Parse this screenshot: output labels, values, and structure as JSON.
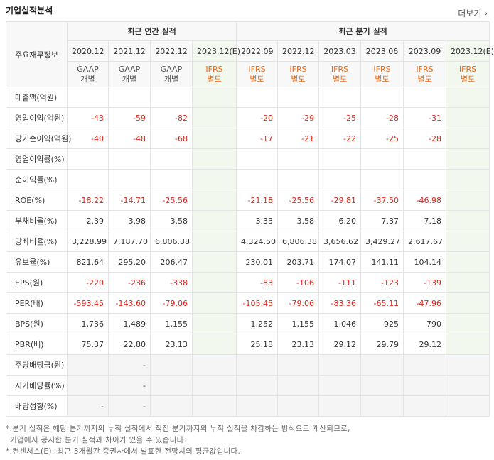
{
  "title": "기업실적분석",
  "more": "더보기",
  "table": {
    "corner": "주요재무정보",
    "groups": [
      {
        "label": "최근 연간 실적",
        "span": 4
      },
      {
        "label": "최근 분기 실적",
        "span": 6
      }
    ],
    "periods": [
      "2020.12",
      "2021.12",
      "2022.12",
      "2023.12(E)",
      "2022.09",
      "2022.12",
      "2023.03",
      "2023.06",
      "2023.09",
      "2023.12(E)"
    ],
    "standards": [
      {
        "type": "GAAP",
        "basis": "개별",
        "color": "#555555"
      },
      {
        "type": "GAAP",
        "basis": "개별",
        "color": "#555555"
      },
      {
        "type": "GAAP",
        "basis": "개별",
        "color": "#555555"
      },
      {
        "type": "IFRS",
        "basis": "별도",
        "color": "#e8691c"
      },
      {
        "type": "IFRS",
        "basis": "별도",
        "color": "#e8691c"
      },
      {
        "type": "IFRS",
        "basis": "별도",
        "color": "#e8691c"
      },
      {
        "type": "IFRS",
        "basis": "별도",
        "color": "#e8691c"
      },
      {
        "type": "IFRS",
        "basis": "별도",
        "color": "#e8691c"
      },
      {
        "type": "IFRS",
        "basis": "별도",
        "color": "#e8691c"
      },
      {
        "type": "IFRS",
        "basis": "별도",
        "color": "#e8691c"
      }
    ],
    "sections": [
      {
        "rows": [
          {
            "label": "매출액(억원)",
            "values": [
              null,
              null,
              null,
              null,
              null,
              null,
              null,
              null,
              null,
              null
            ]
          },
          {
            "label": "영업이익(억원)",
            "values": [
              "-43",
              "-59",
              "-82",
              null,
              "-20",
              "-29",
              "-25",
              "-28",
              "-31",
              null
            ]
          },
          {
            "label": "당기순이익(억원)",
            "values": [
              "-40",
              "-48",
              "-68",
              null,
              "-17",
              "-21",
              "-22",
              "-25",
              "-28",
              null
            ]
          },
          {
            "label": "영업이익률(%)",
            "values": [
              null,
              null,
              null,
              null,
              null,
              null,
              null,
              null,
              null,
              null
            ]
          },
          {
            "label": "순이익률(%)",
            "values": [
              null,
              null,
              null,
              null,
              null,
              null,
              null,
              null,
              null,
              null
            ]
          },
          {
            "label": "ROE(%)",
            "values": [
              "-18.22",
              "-14.71",
              "-25.56",
              null,
              "-21.18",
              "-25.56",
              "-29.81",
              "-37.50",
              "-46.98",
              null
            ]
          }
        ]
      },
      {
        "rows": [
          {
            "label": "부채비율(%)",
            "values": [
              "2.39",
              "3.98",
              "3.58",
              null,
              "3.33",
              "3.58",
              "6.20",
              "7.37",
              "7.18",
              null
            ]
          },
          {
            "label": "당좌비율(%)",
            "values": [
              "3,228.99",
              "7,187.70",
              "6,806.38",
              null,
              "4,324.50",
              "6,806.38",
              "3,656.62",
              "3,429.27",
              "2,617.67",
              null
            ]
          },
          {
            "label": "유보율(%)",
            "values": [
              "821.64",
              "295.20",
              "206.47",
              null,
              "230.01",
              "203.71",
              "174.07",
              "141.11",
              "104.14",
              null
            ]
          }
        ]
      },
      {
        "rows": [
          {
            "label": "EPS(원)",
            "values": [
              "-220",
              "-236",
              "-338",
              null,
              "-83",
              "-106",
              "-111",
              "-123",
              "-139",
              null
            ]
          },
          {
            "label": "PER(배)",
            "values": [
              "-593.45",
              "-143.60",
              "-79.06",
              null,
              "-105.45",
              "-79.06",
              "-83.36",
              "-65.11",
              "-47.96",
              null
            ]
          },
          {
            "label": "BPS(원)",
            "values": [
              "1,736",
              "1,489",
              "1,155",
              null,
              "1,252",
              "1,155",
              "1,046",
              "925",
              "790",
              null
            ]
          },
          {
            "label": "PBR(배)",
            "values": [
              "75.37",
              "22.80",
              "23.13",
              null,
              "25.18",
              "23.13",
              "29.12",
              "29.79",
              "29.12",
              null
            ]
          }
        ]
      },
      {
        "shaded": true,
        "rows": [
          {
            "label": "주당배당금(원)",
            "values": [
              null,
              "-",
              null,
              null,
              null,
              null,
              null,
              null,
              null,
              null
            ]
          },
          {
            "label": "시가배당률(%)",
            "values": [
              null,
              "-",
              null,
              null,
              null,
              null,
              null,
              null,
              null,
              null
            ]
          },
          {
            "label": "배당성향(%)",
            "values": [
              "-",
              "-",
              null,
              null,
              null,
              null,
              null,
              null,
              null,
              null
            ]
          }
        ]
      }
    ]
  },
  "notes": [
    "* 분기 실적은 해당 분기까지의 누적 실적에서 직전 분기까지의 누적 실적을 차감하는 방식으로 계산되므로,",
    "기업에서 공시한 분기 실적과 차이가 있을 수 있습니다.",
    "* 컨센서스(E): 최근 3개월간 증권사에서 발표한 전망치의 평균값입니다."
  ]
}
